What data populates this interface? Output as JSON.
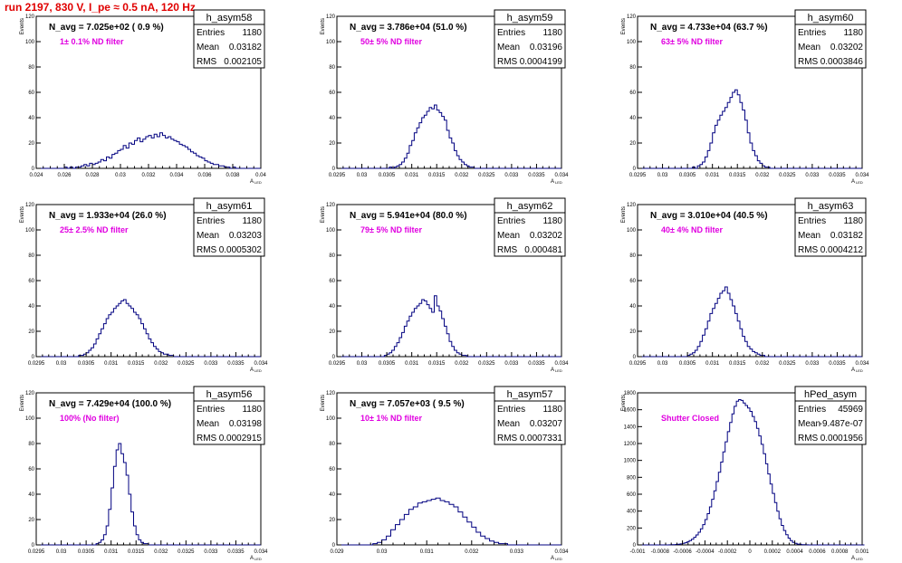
{
  "page_title": "run 2197,   830 V, I_pe ≈ 0.5 nA, 120 Hz",
  "style": {
    "line_color": "#000080",
    "axis_color": "#000000",
    "title_color": "#e00000",
    "nd_label_color": "#e000e0"
  },
  "stat_labels": {
    "entries": "Entries",
    "mean": "Mean",
    "rms": "RMS"
  },
  "y_axis_label": "Events",
  "x_axis_label": "A",
  "x_axis_sub": "LED",
  "chart_data": [
    {
      "type": "histogram",
      "name": "h_asym58",
      "nav": "N_avg = 7.025e+02 ( 0.9 %)",
      "filter": "1± 0.1% ND filter",
      "entries": "1180",
      "mean": "0.03182",
      "rms": "0.002105",
      "xlim": [
        0.024,
        0.04
      ],
      "ylim": [
        0,
        120
      ],
      "xticks": [
        0.024,
        0.026,
        0.028,
        0.03,
        0.032,
        0.034,
        0.036,
        0.038,
        0.04
      ],
      "xticklabels": [
        "0.024",
        "0.026",
        "0.028",
        "0.03",
        "0.032",
        "0.034",
        "0.036",
        "0.038",
        "0.04"
      ],
      "yticks": [
        0,
        20,
        40,
        60,
        80,
        100,
        120
      ],
      "bins": {
        "start": 0.024,
        "width": 0.0002,
        "counts": [
          0,
          0,
          0,
          0,
          0,
          0,
          0,
          0,
          0,
          0,
          1,
          0,
          1,
          0,
          1,
          1,
          2,
          3,
          2,
          4,
          3,
          4,
          5,
          7,
          6,
          9,
          8,
          11,
          12,
          14,
          15,
          18,
          16,
          20,
          19,
          22,
          24,
          21,
          23,
          25,
          26,
          24,
          27,
          25,
          28,
          26,
          24,
          25,
          23,
          22,
          21,
          19,
          18,
          17,
          15,
          13,
          12,
          10,
          9,
          8,
          6,
          5,
          4,
          3,
          3,
          2,
          2,
          1,
          1,
          0,
          1,
          0,
          0,
          0,
          0,
          0,
          0,
          0,
          0,
          0
        ]
      }
    },
    {
      "type": "histogram",
      "name": "h_asym59",
      "nav": "N_avg = 3.786e+04 (51.0 %)",
      "filter": "50± 5% ND filter",
      "entries": "1180",
      "mean": "0.03196",
      "rms": "0.0004199",
      "xlim": [
        0.0295,
        0.034
      ],
      "ylim": [
        0,
        120
      ],
      "xticks": [
        0.0295,
        0.03,
        0.0305,
        0.031,
        0.0315,
        0.032,
        0.0325,
        0.033,
        0.0335,
        0.034
      ],
      "xticklabels": [
        "0.0295",
        "0.03",
        "0.0305",
        "0.031",
        "0.0315",
        "0.032",
        "0.0325",
        "0.033",
        "0.0335",
        "0.034"
      ],
      "yticks": [
        0,
        20,
        40,
        60,
        80,
        100,
        120
      ],
      "bins": {
        "start": 0.0295,
        "width": 5e-05,
        "counts": [
          0,
          0,
          0,
          0,
          0,
          0,
          0,
          0,
          0,
          0,
          0,
          0,
          0,
          0,
          0,
          0,
          0,
          0,
          0,
          0,
          0,
          1,
          0,
          1,
          2,
          3,
          5,
          8,
          12,
          18,
          22,
          28,
          32,
          36,
          40,
          42,
          45,
          48,
          47,
          50,
          46,
          44,
          41,
          38,
          30,
          24,
          20,
          14,
          10,
          7,
          5,
          3,
          2,
          1,
          1,
          0,
          0,
          0,
          0,
          0,
          0,
          0,
          0,
          0,
          0,
          0,
          0,
          0,
          0,
          0,
          0,
          0,
          0,
          0,
          0,
          0,
          0,
          0,
          0,
          0,
          0,
          0,
          0,
          0,
          0,
          0,
          0,
          0,
          0,
          0
        ]
      }
    },
    {
      "type": "histogram",
      "name": "h_asym60",
      "nav": "N_avg = 4.733e+04 (63.7 %)",
      "filter": "63± 5% ND filter",
      "entries": "1180",
      "mean": "0.03202",
      "rms": "0.0003846",
      "xlim": [
        0.0295,
        0.034
      ],
      "ylim": [
        0,
        120
      ],
      "xticks": [
        0.0295,
        0.03,
        0.0305,
        0.031,
        0.0315,
        0.032,
        0.0325,
        0.033,
        0.0335,
        0.034
      ],
      "xticklabels": [
        "0.0295",
        "0.03",
        "0.0305",
        "0.031",
        "0.0315",
        "0.032",
        "0.0325",
        "0.033",
        "0.0335",
        "0.034"
      ],
      "yticks": [
        0,
        20,
        40,
        60,
        80,
        100,
        120
      ],
      "bins": {
        "start": 0.0295,
        "width": 5e-05,
        "counts": [
          0,
          0,
          0,
          0,
          0,
          0,
          0,
          0,
          0,
          0,
          0,
          0,
          0,
          0,
          0,
          0,
          0,
          0,
          0,
          0,
          0,
          0,
          1,
          0,
          2,
          3,
          5,
          9,
          14,
          20,
          28,
          34,
          38,
          42,
          45,
          48,
          52,
          56,
          60,
          62,
          58,
          52,
          46,
          38,
          28,
          20,
          14,
          10,
          6,
          4,
          2,
          1,
          1,
          0,
          0,
          0,
          0,
          0,
          0,
          0,
          0,
          0,
          0,
          0,
          0,
          0,
          0,
          0,
          0,
          0,
          0,
          0,
          0,
          0,
          0,
          0,
          0,
          0,
          0,
          0,
          0,
          0,
          0,
          0,
          0,
          0,
          0,
          0,
          0,
          0
        ]
      }
    },
    {
      "type": "histogram",
      "name": "h_asym61",
      "nav": "N_avg = 1.933e+04 (26.0 %)",
      "filter": "25± 2.5% ND filter",
      "entries": "1180",
      "mean": "0.03203",
      "rms": "0.0005302",
      "xlim": [
        0.0295,
        0.034
      ],
      "ylim": [
        0,
        120
      ],
      "xticks": [
        0.0295,
        0.03,
        0.0305,
        0.031,
        0.0315,
        0.032,
        0.0325,
        0.033,
        0.0335,
        0.034
      ],
      "xticklabels": [
        "0.0295",
        "0.03",
        "0.0305",
        "0.031",
        "0.0315",
        "0.032",
        "0.0325",
        "0.033",
        "0.0335",
        "0.034"
      ],
      "yticks": [
        0,
        20,
        40,
        60,
        80,
        100,
        120
      ],
      "bins": {
        "start": 0.0295,
        "width": 5e-05,
        "counts": [
          0,
          0,
          0,
          0,
          0,
          0,
          0,
          0,
          0,
          0,
          0,
          0,
          0,
          0,
          0,
          0,
          0,
          1,
          1,
          2,
          3,
          5,
          7,
          10,
          14,
          18,
          22,
          26,
          30,
          33,
          35,
          38,
          40,
          42,
          44,
          45,
          42,
          40,
          38,
          35,
          33,
          30,
          26,
          22,
          18,
          14,
          11,
          8,
          6,
          4,
          3,
          2,
          2,
          1,
          1,
          0,
          0,
          0,
          0,
          0,
          0,
          0,
          0,
          0,
          0,
          0,
          0,
          0,
          0,
          0,
          0,
          0,
          0,
          0,
          0,
          0,
          0,
          0,
          0,
          0,
          0,
          0,
          0,
          0,
          0,
          0,
          0,
          0,
          0,
          0
        ]
      }
    },
    {
      "type": "histogram",
      "name": "h_asym62",
      "nav": "N_avg = 5.941e+04 (80.0 %)",
      "filter": "79± 5% ND filter",
      "entries": "1180",
      "mean": "0.03202",
      "rms": "0.000481",
      "xlim": [
        0.0295,
        0.034
      ],
      "ylim": [
        0,
        120
      ],
      "xticks": [
        0.0295,
        0.03,
        0.0305,
        0.031,
        0.0315,
        0.032,
        0.0325,
        0.033,
        0.0335,
        0.034
      ],
      "xticklabels": [
        "0.0295",
        "0.03",
        "0.0305",
        "0.031",
        "0.0315",
        "0.032",
        "0.0325",
        "0.033",
        "0.0335",
        "0.034"
      ],
      "yticks": [
        0,
        20,
        40,
        60,
        80,
        100,
        120
      ],
      "bins": {
        "start": 0.0295,
        "width": 5e-05,
        "counts": [
          0,
          0,
          0,
          0,
          0,
          0,
          0,
          0,
          0,
          0,
          0,
          0,
          0,
          0,
          0,
          0,
          0,
          0,
          0,
          1,
          2,
          3,
          5,
          8,
          11,
          15,
          19,
          24,
          28,
          32,
          35,
          38,
          40,
          42,
          45,
          44,
          41,
          38,
          35,
          48,
          40,
          36,
          30,
          24,
          18,
          12,
          8,
          5,
          3,
          2,
          1,
          1,
          0,
          0,
          0,
          0,
          0,
          0,
          0,
          0,
          0,
          0,
          0,
          0,
          0,
          0,
          0,
          0,
          0,
          0,
          0,
          0,
          0,
          0,
          0,
          0,
          0,
          0,
          0,
          0,
          0,
          0,
          0,
          0,
          0,
          0,
          0,
          0,
          0,
          0
        ]
      }
    },
    {
      "type": "histogram",
      "name": "h_asym63",
      "nav": "N_avg = 3.010e+04 (40.5 %)",
      "filter": "40± 4% ND filter",
      "entries": "1180",
      "mean": "0.03182",
      "rms": "0.0004212",
      "xlim": [
        0.0295,
        0.034
      ],
      "ylim": [
        0,
        120
      ],
      "xticks": [
        0.0295,
        0.03,
        0.0305,
        0.031,
        0.0315,
        0.032,
        0.0325,
        0.033,
        0.0335,
        0.034
      ],
      "xticklabels": [
        "0.0295",
        "0.03",
        "0.0305",
        "0.031",
        "0.0315",
        "0.032",
        "0.0325",
        "0.033",
        "0.0335",
        "0.034"
      ],
      "yticks": [
        0,
        20,
        40,
        60,
        80,
        100,
        120
      ],
      "bins": {
        "start": 0.0295,
        "width": 5e-05,
        "counts": [
          0,
          0,
          0,
          0,
          0,
          0,
          0,
          0,
          0,
          0,
          0,
          0,
          0,
          0,
          0,
          0,
          0,
          0,
          0,
          0,
          1,
          2,
          3,
          5,
          8,
          12,
          17,
          22,
          28,
          34,
          38,
          42,
          46,
          50,
          52,
          55,
          50,
          45,
          40,
          34,
          28,
          22,
          16,
          12,
          8,
          6,
          4,
          3,
          2,
          1,
          1,
          0,
          0,
          0,
          0,
          0,
          0,
          0,
          0,
          0,
          0,
          0,
          0,
          0,
          0,
          0,
          0,
          0,
          0,
          0,
          0,
          0,
          0,
          0,
          0,
          0,
          0,
          0,
          0,
          0,
          0,
          0,
          0,
          0,
          0,
          0,
          0,
          0,
          0,
          0
        ]
      }
    },
    {
      "type": "histogram",
      "name": "h_asym56",
      "nav": "N_avg = 7.429e+04 (100.0 %)",
      "filter": "100% (No filter)",
      "entries": "1180",
      "mean": "0.03198",
      "rms": "0.0002915",
      "xlim": [
        0.0295,
        0.034
      ],
      "ylim": [
        0,
        120
      ],
      "xticks": [
        0.0295,
        0.03,
        0.0305,
        0.031,
        0.0315,
        0.032,
        0.0325,
        0.033,
        0.0335,
        0.034
      ],
      "xticklabels": [
        "0.0295",
        "0.03",
        "0.0305",
        "0.031",
        "0.0315",
        "0.032",
        "0.0325",
        "0.033",
        "0.0335",
        "0.034"
      ],
      "yticks": [
        0,
        20,
        40,
        60,
        80,
        100,
        120
      ],
      "bins": {
        "start": 0.0295,
        "width": 5e-05,
        "counts": [
          0,
          0,
          0,
          0,
          0,
          0,
          0,
          0,
          0,
          0,
          0,
          0,
          0,
          0,
          0,
          0,
          0,
          0,
          0,
          0,
          0,
          0,
          0,
          0,
          1,
          2,
          4,
          8,
          15,
          28,
          45,
          62,
          75,
          80,
          72,
          65,
          55,
          40,
          26,
          15,
          8,
          4,
          2,
          1,
          1,
          0,
          0,
          0,
          0,
          0,
          0,
          0,
          0,
          0,
          0,
          0,
          0,
          0,
          0,
          0,
          0,
          0,
          0,
          0,
          0,
          0,
          0,
          0,
          0,
          0,
          0,
          0,
          0,
          0,
          0,
          0,
          0,
          0,
          0,
          0,
          0,
          0,
          0,
          0,
          0,
          0,
          0,
          0,
          0,
          0
        ]
      }
    },
    {
      "type": "histogram",
      "name": "h_asym57",
      "nav": "N_avg = 7.057e+03 ( 9.5 %)",
      "filter": "10± 1% ND filter",
      "entries": "1180",
      "mean": "0.03207",
      "rms": "0.0007331",
      "xlim": [
        0.029,
        0.034
      ],
      "ylim": [
        0,
        120
      ],
      "xticks": [
        0.029,
        0.03,
        0.031,
        0.032,
        0.033,
        0.034
      ],
      "xticklabels": [
        "0.029",
        "0.03",
        "0.031",
        "0.032",
        "0.033",
        "0.034"
      ],
      "yticks": [
        0,
        20,
        40,
        60,
        80,
        100,
        120
      ],
      "bins": {
        "start": 0.029,
        "width": 0.0001,
        "counts": [
          0,
          0,
          0,
          0,
          0,
          0,
          0,
          0,
          1,
          2,
          4,
          7,
          12,
          16,
          20,
          24,
          28,
          30,
          33,
          34,
          35,
          36,
          37,
          35,
          34,
          32,
          30,
          26,
          22,
          18,
          14,
          10,
          7,
          5,
          3,
          2,
          1,
          1,
          0,
          0,
          0,
          0,
          0,
          0,
          0,
          0,
          0,
          0,
          0,
          0
        ]
      }
    },
    {
      "type": "histogram",
      "name": "hPed_asym",
      "nav": "",
      "filter": "Shutter Closed",
      "entries": "45969",
      "mean": "-9.487e-07",
      "rms": "0.0001956",
      "xlim": [
        -0.001,
        0.001
      ],
      "ylim": [
        0,
        1800
      ],
      "xticks": [
        -0.001,
        -0.0008,
        -0.0006,
        -0.0004,
        -0.0002,
        0,
        0.0002,
        0.0004,
        0.0006,
        0.0008,
        0.001
      ],
      "xticklabels": [
        "-0.001",
        "-0.0008",
        "-0.0006",
        "-0.0004",
        "-0.0002",
        "0",
        "0.0002",
        "0.0004",
        "0.0006",
        "0.0008",
        "0.001"
      ],
      "yticks": [
        0,
        200,
        400,
        600,
        800,
        1000,
        1200,
        1400,
        1600,
        1800
      ],
      "bins": {
        "start": -0.001,
        "width": 2e-05,
        "counts": [
          0,
          0,
          0,
          0,
          0,
          0,
          0,
          0,
          0,
          0,
          0,
          0,
          0,
          0,
          1,
          2,
          3,
          5,
          8,
          12,
          18,
          26,
          36,
          50,
          68,
          90,
          118,
          150,
          190,
          240,
          300,
          370,
          450,
          540,
          640,
          750,
          860,
          980,
          1100,
          1220,
          1340,
          1450,
          1550,
          1640,
          1700,
          1720,
          1710,
          1680,
          1650,
          1620,
          1580,
          1520,
          1460,
          1380,
          1290,
          1190,
          1080,
          960,
          840,
          720,
          610,
          500,
          400,
          310,
          230,
          170,
          120,
          80,
          50,
          30,
          18,
          10,
          6,
          3,
          2,
          1,
          0,
          0,
          0,
          0,
          0,
          0,
          0,
          0,
          0,
          0,
          0,
          0,
          0,
          0,
          0,
          0,
          0,
          0,
          0,
          0,
          0,
          0,
          0,
          0,
          0
        ]
      }
    }
  ]
}
